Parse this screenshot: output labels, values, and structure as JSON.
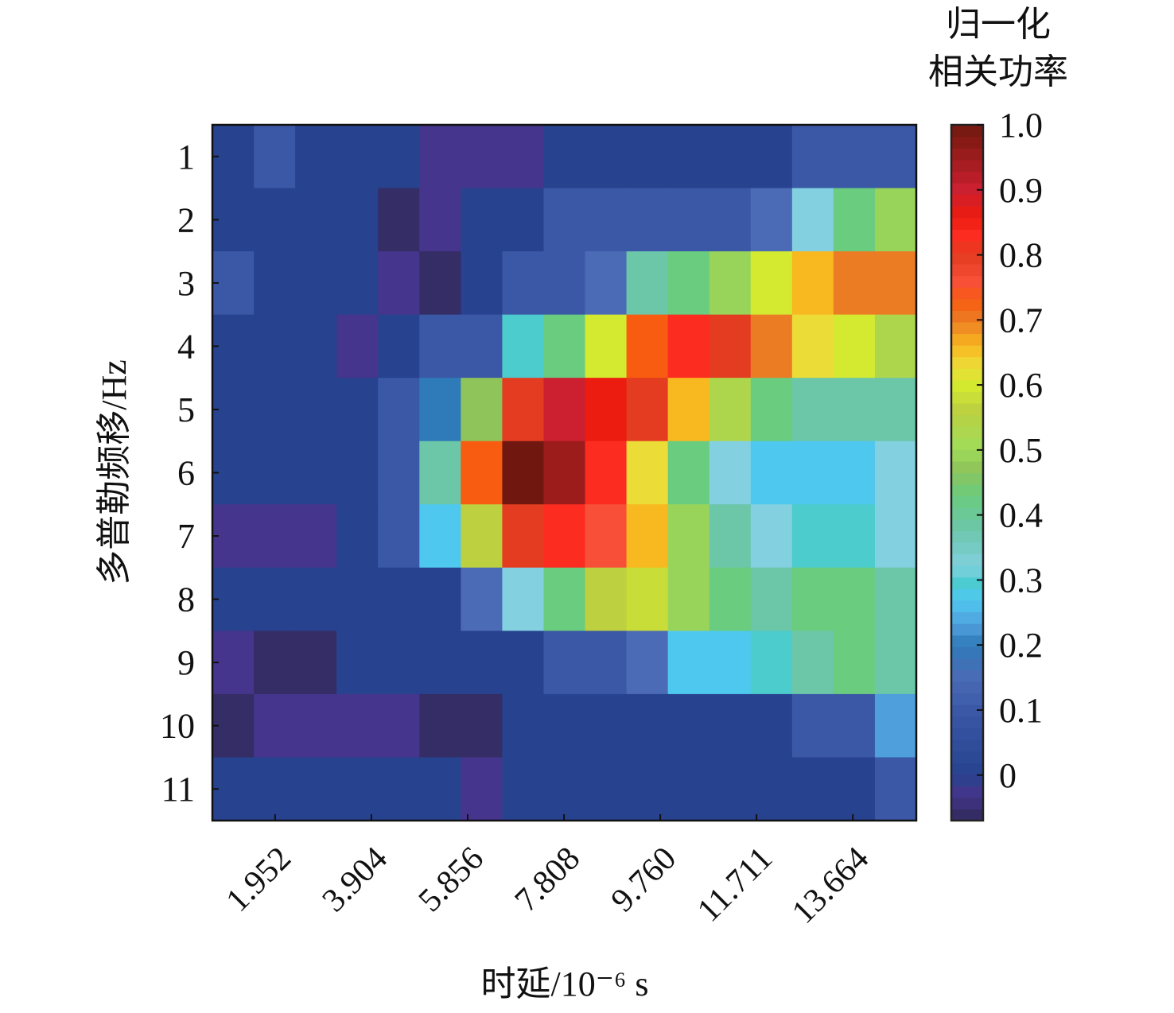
{
  "chart_data": {
    "type": "heatmap",
    "xlabel": "时延/10⁻⁶ s",
    "ylabel": "多普勒频移/Hz",
    "colorbar_title": [
      "归一化",
      "相关功率"
    ],
    "xlim": [
      0.68,
      14.95
    ],
    "x_ticks": [
      1.952,
      3.904,
      5.856,
      7.808,
      9.76,
      11.711,
      13.664
    ],
    "x_tick_labels": [
      "1.952",
      "3.904",
      "5.856",
      "7.808",
      "9.760",
      "11.711",
      "13.664"
    ],
    "y_categories": [
      "1",
      "2",
      "3",
      "4",
      "5",
      "6",
      "7",
      "8",
      "9",
      "10",
      "11"
    ],
    "colorbar_range": [
      -0.07,
      1.0
    ],
    "colorbar_ticks": [
      0,
      0.1,
      0.2,
      0.3,
      0.4,
      0.5,
      0.6,
      0.7,
      0.8,
      0.9,
      1.0
    ],
    "colorbar_tick_labels": [
      "0",
      "0.1",
      "0.2",
      "0.3",
      "0.4",
      "0.5",
      "0.6",
      "0.7",
      "0.8",
      "0.9",
      "1.0"
    ],
    "colormap": [
      [
        -0.07,
        "#2f2a58"
      ],
      [
        -0.03,
        "#45358c"
      ],
      [
        0.0,
        "#27438f"
      ],
      [
        0.1,
        "#3a58a6"
      ],
      [
        0.15,
        "#4b6bb6"
      ],
      [
        0.2,
        "#2f7ab8"
      ],
      [
        0.23,
        "#4f9fdc"
      ],
      [
        0.27,
        "#4fc8f0"
      ],
      [
        0.3,
        "#4ccccc"
      ],
      [
        0.32,
        "#82d0e0"
      ],
      [
        0.38,
        "#6cc6a8"
      ],
      [
        0.43,
        "#6acc7e"
      ],
      [
        0.47,
        "#8fc45a"
      ],
      [
        0.5,
        "#9edc5a"
      ],
      [
        0.56,
        "#bcd040"
      ],
      [
        0.6,
        "#d4ea30"
      ],
      [
        0.63,
        "#ecdc38"
      ],
      [
        0.66,
        "#f8b820"
      ],
      [
        0.7,
        "#ec7c24"
      ],
      [
        0.73,
        "#f85c10"
      ],
      [
        0.76,
        "#f85038"
      ],
      [
        0.8,
        "#e43c20"
      ],
      [
        0.83,
        "#fc2c20"
      ],
      [
        0.86,
        "#ec1c10"
      ],
      [
        0.9,
        "#cc2030"
      ],
      [
        0.95,
        "#9c1c1c"
      ],
      [
        1.0,
        "#701810"
      ]
    ],
    "values": [
      [
        0,
        0.1,
        0,
        0,
        0,
        -0.03,
        -0.03,
        -0.03,
        0,
        0,
        0,
        0,
        0,
        0,
        0.1,
        0.1,
        0.1
      ],
      [
        0,
        0,
        0,
        0,
        -0.06,
        -0.03,
        0,
        0,
        0.1,
        0.1,
        0.1,
        0.1,
        0.1,
        0.15,
        0.32,
        0.43,
        0.49
      ],
      [
        0.1,
        0,
        0,
        0,
        -0.03,
        -0.06,
        0,
        0.1,
        0.1,
        0.15,
        0.38,
        0.43,
        0.49,
        0.6,
        0.66,
        0.7,
        0.7
      ],
      [
        0,
        0,
        0,
        -0.03,
        0,
        0.1,
        0.1,
        0.3,
        0.43,
        0.6,
        0.73,
        0.83,
        0.8,
        0.7,
        0.63,
        0.6,
        0.53
      ],
      [
        0,
        0,
        0,
        0,
        0.1,
        0.2,
        0.47,
        0.8,
        0.9,
        0.86,
        0.8,
        0.66,
        0.53,
        0.43,
        0.38,
        0.38,
        0.38
      ],
      [
        0,
        0,
        0,
        0,
        0.1,
        0.38,
        0.73,
        1.0,
        0.95,
        0.83,
        0.63,
        0.43,
        0.32,
        0.27,
        0.27,
        0.27,
        0.32
      ],
      [
        -0.03,
        -0.03,
        -0.03,
        0,
        0.1,
        0.27,
        0.56,
        0.8,
        0.83,
        0.76,
        0.66,
        0.49,
        0.38,
        0.32,
        0.3,
        0.3,
        0.32
      ],
      [
        0,
        0,
        0,
        0,
        0,
        0,
        0.15,
        0.32,
        0.43,
        0.56,
        0.58,
        0.49,
        0.43,
        0.38,
        0.43,
        0.43,
        0.38
      ],
      [
        -0.03,
        -0.06,
        -0.06,
        0,
        0,
        0,
        0,
        0,
        0.1,
        0.1,
        0.15,
        0.27,
        0.27,
        0.3,
        0.38,
        0.43,
        0.38
      ],
      [
        -0.06,
        -0.03,
        -0.03,
        -0.03,
        -0.03,
        -0.06,
        -0.06,
        0,
        0,
        0,
        0,
        0,
        0,
        0,
        0.1,
        0.1,
        0.23
      ],
      [
        0,
        0,
        0,
        0,
        0,
        0,
        -0.03,
        0,
        0,
        0,
        0,
        0,
        0,
        0,
        0,
        0,
        0.1
      ]
    ],
    "grid": false
  }
}
